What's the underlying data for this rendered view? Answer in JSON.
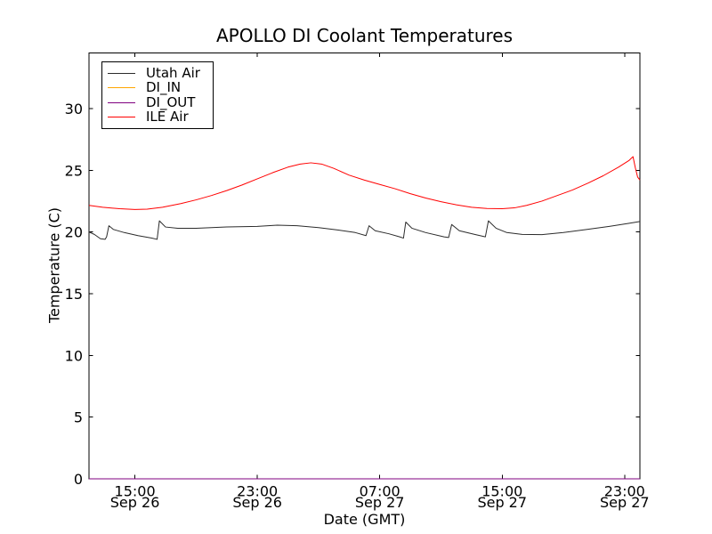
{
  "page": {
    "background": "#ffffff"
  },
  "chart_data": {
    "type": "line",
    "title": "APOLLO DI Coolant Temperatures",
    "xlabel": "Date (GMT)",
    "ylabel": "Temperature (C)",
    "x_unit_hours_origin": "Sep 26 12:00 GMT",
    "xlim": [
      0,
      36
    ],
    "ylim": [
      0,
      34.5
    ],
    "grid": false,
    "frame_color": "#000000",
    "tick_color": "#000000",
    "legend": {
      "position": "upper left",
      "border_color": "#000000",
      "background": "#ffffff"
    },
    "xticks": [
      {
        "t": 3,
        "time": "15:00",
        "date": "Sep 26"
      },
      {
        "t": 11,
        "time": "23:00",
        "date": "Sep 26"
      },
      {
        "t": 19,
        "time": "07:00",
        "date": "Sep 27"
      },
      {
        "t": 27,
        "time": "15:00",
        "date": "Sep 27"
      },
      {
        "t": 35,
        "time": "23:00",
        "date": "Sep 27"
      }
    ],
    "yticks": [
      0,
      5,
      10,
      15,
      20,
      25,
      30
    ],
    "series": [
      {
        "name": "Utah Air",
        "color": "#2b2b2b",
        "points": [
          [
            0,
            20.0
          ],
          [
            0.35,
            19.8
          ],
          [
            0.75,
            19.45
          ],
          [
            1.05,
            19.4
          ],
          [
            1.15,
            19.6
          ],
          [
            1.3,
            20.5
          ],
          [
            1.6,
            20.2
          ],
          [
            2.3,
            19.95
          ],
          [
            3.2,
            19.7
          ],
          [
            4.1,
            19.5
          ],
          [
            4.45,
            19.4
          ],
          [
            4.6,
            20.9
          ],
          [
            5.0,
            20.4
          ],
          [
            5.8,
            20.3
          ],
          [
            7.0,
            20.3
          ],
          [
            9.0,
            20.4
          ],
          [
            11.0,
            20.45
          ],
          [
            12.3,
            20.55
          ],
          [
            13.6,
            20.5
          ],
          [
            15.0,
            20.35
          ],
          [
            16.3,
            20.15
          ],
          [
            17.4,
            19.95
          ],
          [
            18.1,
            19.7
          ],
          [
            18.3,
            20.5
          ],
          [
            18.7,
            20.1
          ],
          [
            19.6,
            19.85
          ],
          [
            20.3,
            19.6
          ],
          [
            20.55,
            19.5
          ],
          [
            20.7,
            20.8
          ],
          [
            21.1,
            20.3
          ],
          [
            22.0,
            19.95
          ],
          [
            23.2,
            19.6
          ],
          [
            23.5,
            19.55
          ],
          [
            23.7,
            20.6
          ],
          [
            24.2,
            20.1
          ],
          [
            25.2,
            19.8
          ],
          [
            25.9,
            19.6
          ],
          [
            26.1,
            20.9
          ],
          [
            26.6,
            20.3
          ],
          [
            27.3,
            19.95
          ],
          [
            28.3,
            19.8
          ],
          [
            29.6,
            19.78
          ],
          [
            31.0,
            19.95
          ],
          [
            32.5,
            20.2
          ],
          [
            34.0,
            20.45
          ],
          [
            35.3,
            20.7
          ],
          [
            36.0,
            20.85
          ]
        ]
      },
      {
        "name": "DI_IN",
        "color": "#ffa500",
        "points": [
          [
            0,
            0
          ],
          [
            36,
            0
          ]
        ]
      },
      {
        "name": "DI_OUT",
        "color": "#800080",
        "points": [
          [
            0,
            0
          ],
          [
            36,
            0
          ]
        ]
      },
      {
        "name": "ILE Air",
        "color": "#ff0000",
        "points": [
          [
            0,
            22.15
          ],
          [
            0.9,
            22.0
          ],
          [
            2.0,
            21.88
          ],
          [
            3.0,
            21.82
          ],
          [
            3.8,
            21.85
          ],
          [
            4.8,
            22.0
          ],
          [
            6.0,
            22.3
          ],
          [
            7.0,
            22.6
          ],
          [
            8.0,
            22.95
          ],
          [
            9.0,
            23.35
          ],
          [
            10.0,
            23.8
          ],
          [
            11.0,
            24.3
          ],
          [
            12.0,
            24.8
          ],
          [
            13.0,
            25.25
          ],
          [
            13.8,
            25.5
          ],
          [
            14.5,
            25.6
          ],
          [
            15.2,
            25.5
          ],
          [
            16.0,
            25.15
          ],
          [
            17.0,
            24.6
          ],
          [
            18.0,
            24.2
          ],
          [
            19.0,
            23.85
          ],
          [
            20.0,
            23.5
          ],
          [
            21.0,
            23.1
          ],
          [
            22.0,
            22.75
          ],
          [
            23.0,
            22.45
          ],
          [
            24.0,
            22.2
          ],
          [
            25.0,
            22.0
          ],
          [
            26.0,
            21.9
          ],
          [
            27.0,
            21.88
          ],
          [
            27.8,
            21.95
          ],
          [
            28.6,
            22.15
          ],
          [
            29.6,
            22.5
          ],
          [
            30.6,
            22.95
          ],
          [
            31.6,
            23.4
          ],
          [
            32.6,
            23.95
          ],
          [
            33.6,
            24.55
          ],
          [
            34.6,
            25.25
          ],
          [
            35.3,
            25.8
          ],
          [
            35.55,
            26.1
          ],
          [
            35.7,
            25.2
          ],
          [
            35.85,
            24.45
          ],
          [
            36.0,
            24.2
          ]
        ]
      }
    ]
  }
}
